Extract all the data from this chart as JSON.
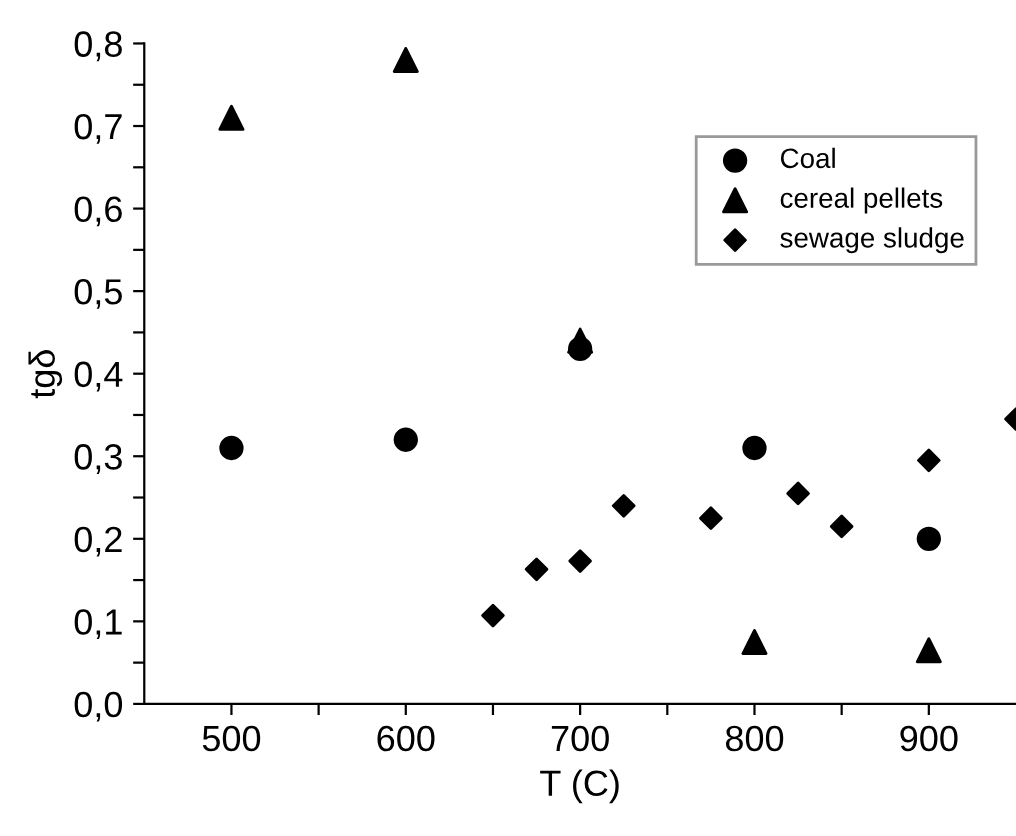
{
  "chart_data": {
    "type": "scatter",
    "xlabel": "T (C)",
    "ylabel": "tgδ",
    "legend": "top right",
    "grid": false,
    "xlim": [
      450,
      950
    ],
    "ylim": [
      0,
      0.8
    ],
    "xticks": [
      500,
      {
        "value": 550,
        "label": null
      },
      600,
      {
        "value": 650,
        "label": null
      },
      700,
      {
        "value": 750,
        "label": null
      },
      800,
      {
        "value": 850,
        "label": null
      },
      900
    ],
    "yticks": [
      {
        "value": 0,
        "label": "0,0"
      },
      {
        "value": 0.05,
        "label": null
      },
      {
        "value": 0.1,
        "label": "0,1"
      },
      {
        "value": 0.15,
        "label": null
      },
      {
        "value": 0.2,
        "label": "0,2"
      },
      {
        "value": 0.25,
        "label": null
      },
      {
        "value": 0.3,
        "label": "0,3"
      },
      {
        "value": 0.35,
        "label": null
      },
      {
        "value": 0.4,
        "label": "0,4"
      },
      {
        "value": 0.45,
        "label": null
      },
      {
        "value": 0.5,
        "label": "0,5"
      },
      {
        "value": 0.55,
        "label": null
      },
      {
        "value": 0.6,
        "label": "0,6"
      },
      {
        "value": 0.65,
        "label": null
      },
      {
        "value": 0.7,
        "label": "0,7"
      },
      {
        "value": 0.75,
        "label": null
      },
      {
        "value": 0.8,
        "label": "0,8"
      }
    ],
    "series": [
      {
        "name": "Coal",
        "color": "#000000",
        "marker": "circle",
        "x": [
          500,
          600,
          700,
          800,
          900
        ],
        "values": [
          0.31,
          0.32,
          0.43,
          0.31,
          0.2
        ]
      },
      {
        "name": "cereal pellets",
        "color": "#000000",
        "marker": "triangle",
        "x": [
          500,
          600,
          700,
          800,
          900
        ],
        "values": [
          0.71,
          0.78,
          0.44,
          0.075,
          0.065
        ]
      },
      {
        "name": "sewage sludge",
        "color": "#000000",
        "marker": "diamond",
        "x": [
          650,
          675,
          700,
          725,
          775,
          825,
          850,
          900,
          950
        ],
        "values": [
          0.107,
          0.163,
          0.173,
          0.24,
          0.225,
          0.255,
          0.215,
          0.295,
          0.345
        ]
      }
    ]
  }
}
